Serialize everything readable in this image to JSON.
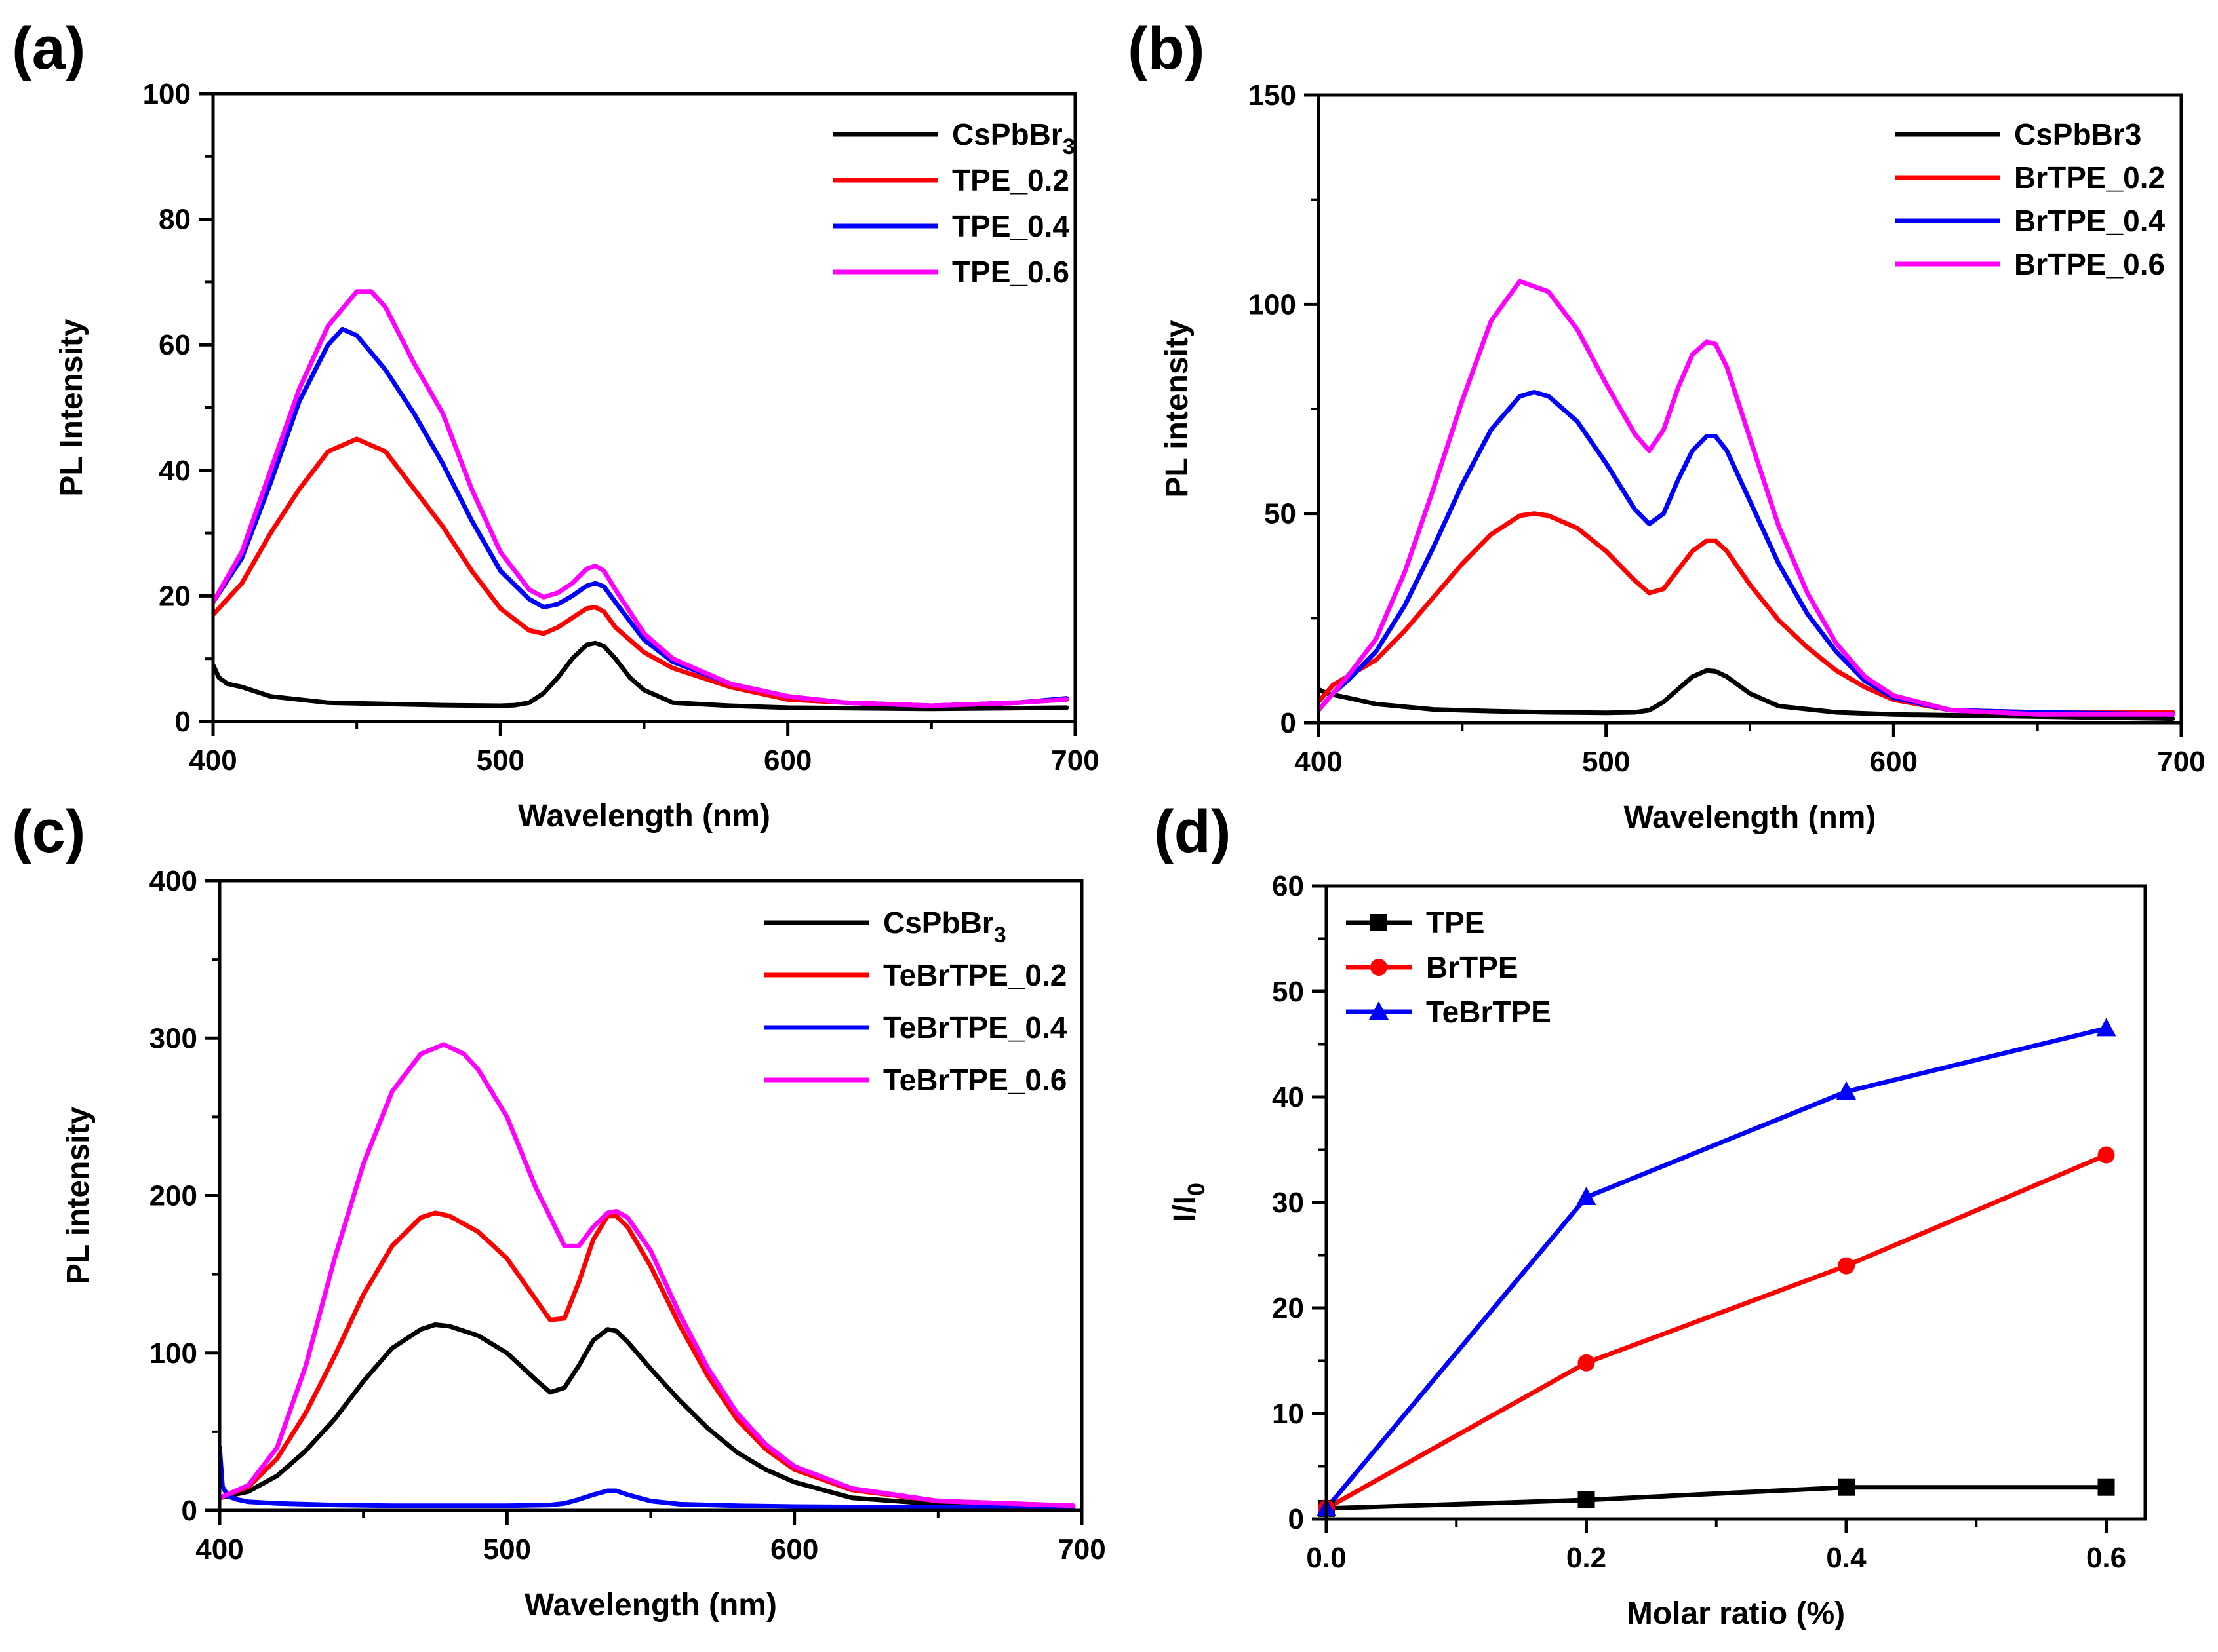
{
  "chart_data": [
    {
      "panel": "(a)",
      "type": "line",
      "xlabel": "Wavelength (nm)",
      "ylabel": "PL Intensity",
      "xlim": [
        400,
        700
      ],
      "ylim": [
        0,
        100
      ],
      "xticks": [
        400,
        500,
        600,
        700
      ],
      "yticks": [
        0,
        20,
        40,
        60,
        80,
        100
      ],
      "legend_position": "top-right",
      "series": [
        {
          "name": "CsPbBr",
          "sub": "3",
          "color": "#000000",
          "x": [
            400,
            402,
            405,
            410,
            420,
            440,
            460,
            480,
            500,
            505,
            510,
            515,
            520,
            525,
            530,
            533,
            536,
            540,
            545,
            550,
            560,
            580,
            600,
            650,
            697
          ],
          "y": [
            9,
            7,
            6,
            5.5,
            4,
            3,
            2.8,
            2.6,
            2.5,
            2.6,
            3,
            4.5,
            7,
            10,
            12.2,
            12.5,
            12,
            10,
            7,
            5,
            3,
            2.5,
            2.2,
            2,
            2.2
          ]
        },
        {
          "name": "TPE_0.2",
          "color": "#ff0000",
          "x": [
            400,
            410,
            420,
            430,
            440,
            450,
            460,
            470,
            480,
            490,
            500,
            510,
            515,
            520,
            525,
            530,
            533,
            536,
            540,
            550,
            560,
            580,
            600,
            620,
            650,
            680,
            697
          ],
          "y": [
            17,
            22,
            30,
            37,
            43,
            45,
            43,
            37,
            31,
            24,
            18,
            14.5,
            14,
            15,
            16.5,
            18,
            18.2,
            17.5,
            15,
            11,
            8.5,
            5.5,
            3.5,
            3,
            2.5,
            3,
            3.5
          ]
        },
        {
          "name": "TPE_0.4",
          "color": "#0000ff",
          "x": [
            400,
            410,
            420,
            430,
            440,
            445,
            450,
            460,
            470,
            480,
            490,
            500,
            510,
            515,
            520,
            525,
            530,
            533,
            536,
            540,
            550,
            560,
            580,
            600,
            620,
            650,
            680,
            697
          ],
          "y": [
            19,
            26,
            38,
            51,
            60,
            62.5,
            61.5,
            56,
            49,
            41,
            32,
            24,
            19.5,
            18.2,
            18.7,
            20,
            21.6,
            22,
            21.5,
            19,
            13,
            9.5,
            6,
            4,
            3,
            2.5,
            3,
            3.7
          ]
        },
        {
          "name": "TPE_0.6",
          "color": "#ff00ff",
          "x": [
            400,
            410,
            420,
            430,
            440,
            450,
            455,
            460,
            470,
            480,
            490,
            500,
            510,
            515,
            520,
            525,
            530,
            533,
            536,
            540,
            550,
            560,
            580,
            600,
            620,
            650,
            680,
            697
          ],
          "y": [
            19,
            27,
            40,
            53,
            63,
            68.5,
            68.5,
            66,
            57,
            49,
            37,
            27,
            21,
            19.8,
            20.5,
            22,
            24.3,
            24.8,
            24,
            21,
            14,
            10,
            6,
            4,
            3,
            2.5,
            3,
            3.5
          ]
        }
      ]
    },
    {
      "panel": "(b)",
      "type": "line",
      "xlabel": "Wavelength (nm)",
      "ylabel": "PL intensity",
      "xlim": [
        400,
        700
      ],
      "ylim": [
        0,
        150
      ],
      "xticks": [
        400,
        500,
        600,
        700
      ],
      "yticks": [
        0,
        50,
        100,
        150
      ],
      "legend_position": "top-right",
      "series": [
        {
          "name": "CsPbBr3",
          "color": "#000000",
          "x": [
            400,
            403,
            410,
            420,
            440,
            460,
            480,
            500,
            510,
            515,
            520,
            525,
            530,
            535,
            538,
            542,
            550,
            560,
            580,
            600,
            650,
            697
          ],
          "y": [
            8,
            7,
            6,
            4.5,
            3.2,
            2.8,
            2.5,
            2.4,
            2.5,
            3,
            5,
            8,
            11,
            12.5,
            12.3,
            11,
            7,
            4,
            2.5,
            2,
            1.5,
            1
          ]
        },
        {
          "name": "BrTPE_0.2",
          "color": "#ff0000",
          "x": [
            400,
            405,
            410,
            420,
            430,
            440,
            450,
            460,
            470,
            475,
            480,
            490,
            500,
            510,
            515,
            520,
            525,
            530,
            535,
            538,
            542,
            550,
            560,
            570,
            580,
            590,
            600,
            620,
            650,
            697
          ],
          "y": [
            5,
            9,
            11,
            15,
            22,
            30,
            38,
            45,
            49.5,
            50,
            49.5,
            46.5,
            41,
            34,
            31,
            32,
            36.5,
            41,
            43.5,
            43.5,
            41,
            33,
            24.5,
            18,
            12.5,
            8.5,
            5.5,
            3,
            2.5,
            2.5
          ]
        },
        {
          "name": "BrTPE_0.4",
          "color": "#0000ff",
          "x": [
            400,
            405,
            410,
            420,
            430,
            440,
            450,
            460,
            470,
            475,
            480,
            490,
            500,
            510,
            515,
            520,
            525,
            530,
            535,
            538,
            542,
            550,
            560,
            570,
            580,
            590,
            600,
            620,
            650,
            697
          ],
          "y": [
            3,
            7,
            10,
            17,
            28,
            42,
            57,
            70,
            78,
            79,
            78,
            72,
            62,
            51,
            47.5,
            50,
            58,
            65,
            68.5,
            68.5,
            65,
            53,
            38,
            26,
            17,
            10,
            6,
            3,
            2.5,
            2
          ]
        },
        {
          "name": "BrTPE_0.6",
          "color": "#ff00ff",
          "x": [
            400,
            405,
            410,
            420,
            430,
            440,
            450,
            460,
            470,
            480,
            490,
            500,
            510,
            515,
            520,
            525,
            530,
            535,
            538,
            542,
            550,
            560,
            570,
            580,
            590,
            600,
            620,
            650,
            697
          ],
          "y": [
            3,
            7,
            11,
            20,
            36,
            56,
            77,
            96,
            105.5,
            103,
            94,
            81,
            69,
            65,
            70,
            80,
            88,
            91,
            90.5,
            85,
            68,
            47,
            31,
            19,
            11,
            6.5,
            3,
            2,
            2
          ]
        }
      ]
    },
    {
      "panel": "(c)",
      "type": "line",
      "xlabel": "Wavelength (nm)",
      "ylabel": "PL intensity",
      "xlim": [
        400,
        700
      ],
      "ylim": [
        0,
        400
      ],
      "xticks": [
        400,
        500,
        600,
        700
      ],
      "yticks": [
        0,
        100,
        200,
        300,
        400
      ],
      "legend_position": "top-right",
      "series": [
        {
          "name": "CsPbBr",
          "sub": "3",
          "color": "#000000",
          "x": [
            400,
            410,
            420,
            430,
            440,
            450,
            460,
            470,
            475,
            480,
            490,
            500,
            510,
            515,
            520,
            525,
            530,
            535,
            538,
            542,
            550,
            560,
            570,
            580,
            590,
            600,
            620,
            650,
            697
          ],
          "y": [
            8,
            12,
            22,
            38,
            58,
            82,
            103,
            115,
            118,
            117,
            111,
            100,
            83,
            75,
            78,
            92,
            108,
            115,
            114,
            107,
            90,
            70,
            52,
            37,
            26,
            18,
            8,
            4,
            3
          ]
        },
        {
          "name": "TeBrTPE_0.2",
          "color": "#ff0000",
          "x": [
            400,
            410,
            420,
            430,
            440,
            450,
            460,
            470,
            475,
            480,
            490,
            500,
            510,
            515,
            520,
            525,
            530,
            535,
            538,
            542,
            550,
            560,
            570,
            580,
            590,
            600,
            620,
            650,
            697
          ],
          "y": [
            8,
            15,
            33,
            62,
            98,
            137,
            168,
            186,
            189,
            187,
            177,
            160,
            134,
            121,
            122,
            145,
            172,
            187,
            187,
            180,
            155,
            118,
            85,
            58,
            39,
            26,
            13,
            6,
            3
          ]
        },
        {
          "name": "TeBrTPE_0.4",
          "color": "#0000ff",
          "x": [
            400,
            401,
            403,
            406,
            410,
            420,
            440,
            460,
            480,
            500,
            515,
            520,
            525,
            530,
            535,
            538,
            542,
            550,
            560,
            580,
            600,
            650,
            697
          ],
          "y": [
            40,
            15,
            9,
            7,
            5.5,
            4.5,
            3.5,
            3,
            3,
            3,
            3.5,
            4.5,
            7,
            10,
            12.5,
            12.5,
            10,
            6,
            4,
            3,
            2.5,
            2,
            2
          ]
        },
        {
          "name": "TeBrTPE_0.6",
          "color": "#ff00ff",
          "x": [
            400,
            410,
            420,
            430,
            440,
            450,
            460,
            470,
            478,
            485,
            490,
            500,
            510,
            520,
            525,
            530,
            535,
            538,
            542,
            550,
            560,
            570,
            580,
            590,
            600,
            620,
            650,
            697
          ],
          "y": [
            8,
            16,
            40,
            92,
            160,
            220,
            266,
            290,
            296,
            290,
            280,
            250,
            205,
            168,
            168,
            180,
            189,
            190,
            186,
            165,
            125,
            90,
            62,
            42,
            28,
            14,
            6,
            3
          ]
        }
      ]
    },
    {
      "panel": "(d)",
      "type": "line",
      "xlabel": "Molar ratio (%)",
      "ylabel": "I/I",
      "ylabel_sub": "0",
      "xlim": [
        0,
        0.63
      ],
      "ylim": [
        0,
        60
      ],
      "xticks": [
        0.0,
        0.2,
        0.4,
        0.6
      ],
      "xtick_labels": [
        "0.0",
        "0.2",
        "0.4",
        "0.6"
      ],
      "yticks": [
        0,
        10,
        20,
        30,
        40,
        50,
        60
      ],
      "legend_position": "top-left",
      "series": [
        {
          "name": "TPE",
          "color": "#000000",
          "marker": "square",
          "x": [
            0,
            0.2,
            0.4,
            0.6
          ],
          "y": [
            1,
            1.8,
            3,
            3
          ]
        },
        {
          "name": "BrTPE",
          "color": "#ff0000",
          "marker": "circle",
          "x": [
            0,
            0.2,
            0.4,
            0.6
          ],
          "y": [
            1,
            14.8,
            24,
            34.5
          ]
        },
        {
          "name": "TeBrTPE",
          "color": "#0000ff",
          "marker": "triangle",
          "x": [
            0,
            0.2,
            0.4,
            0.6
          ],
          "y": [
            1,
            30.5,
            40.5,
            46.5
          ]
        }
      ]
    }
  ]
}
